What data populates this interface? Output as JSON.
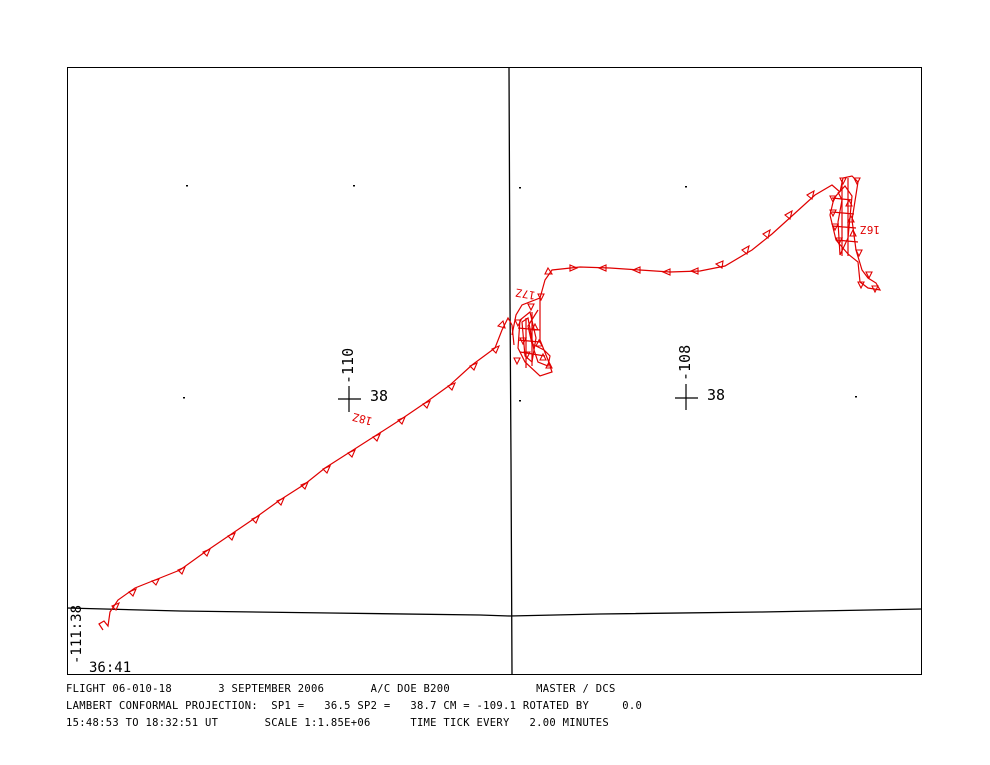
{
  "map": {
    "corner_lon_label": "-111:38",
    "corner_lat_label": "36:41",
    "grid_labels": [
      {
        "lon": "-110",
        "lat": "38"
      },
      {
        "lon": "-108",
        "lat": "38"
      }
    ],
    "time_labels": [
      "18Z",
      "17Z",
      "16Z"
    ],
    "track_color": "#e00000"
  },
  "footer": {
    "line1": "FLIGHT 06-010-18       3 SEPTEMBER 2006       A/C DOE B200             MASTER / DCS",
    "line2": "LAMBERT CONFORMAL PROJECTION:  SP1 =   36.5 SP2 =   38.7 CM = -109.1 ROTATED BY     0.0",
    "line3": "15:48:53 TO 18:32:51 UT       SCALE 1:1.85E+06      TIME TICK EVERY   2.00 MINUTES"
  }
}
